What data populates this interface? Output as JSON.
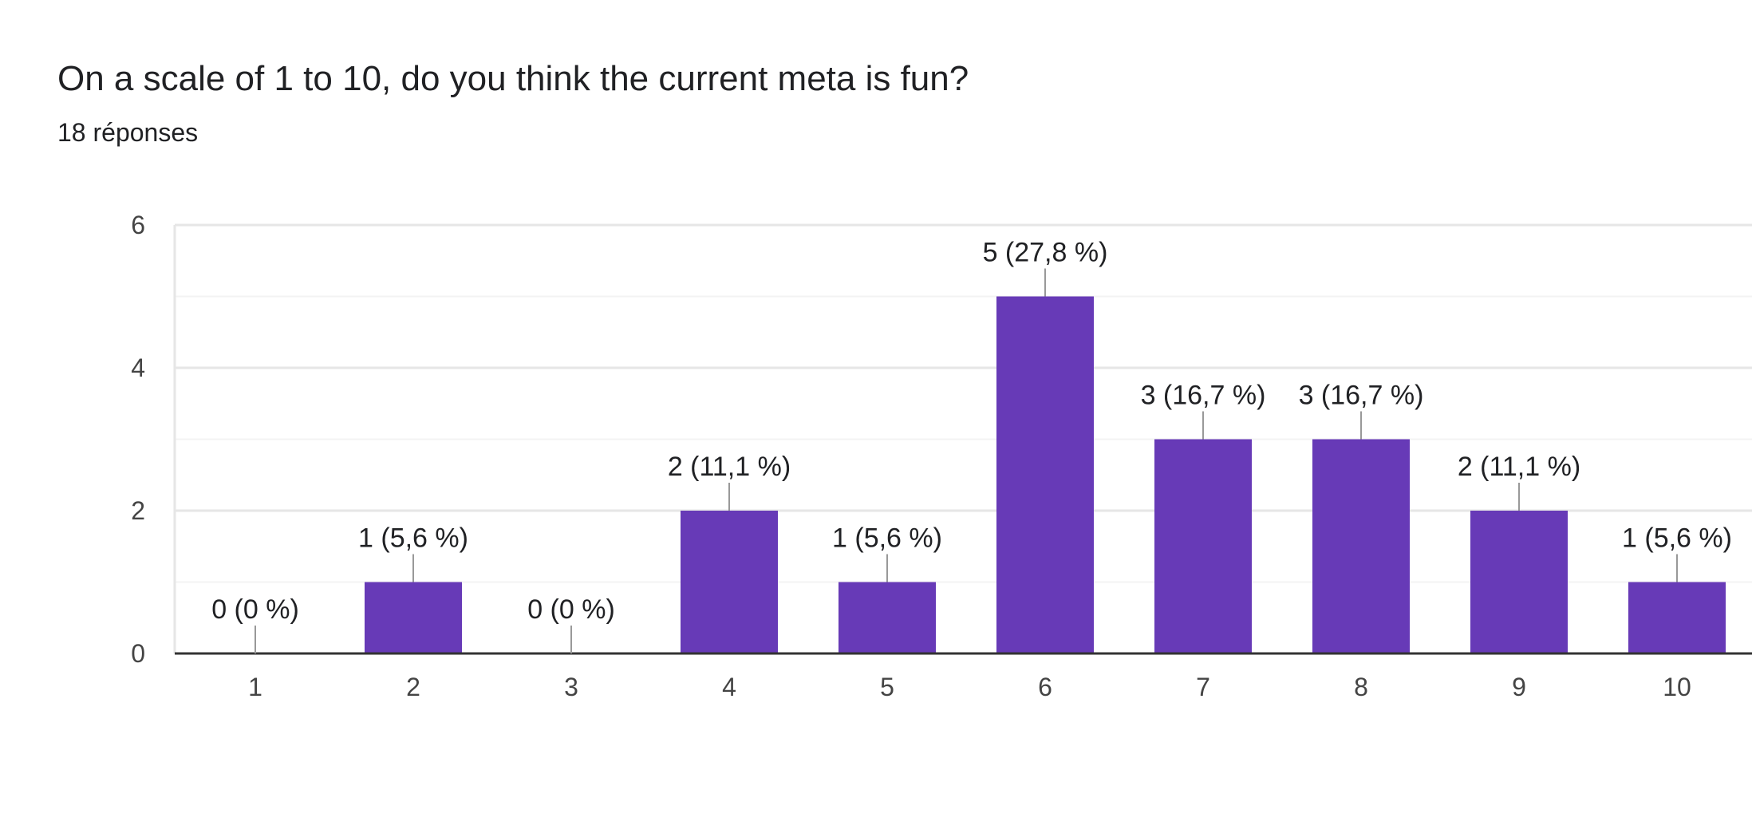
{
  "header": {
    "title": "On a scale of 1 to 10, do you think the current meta is fun?",
    "responses": "18 réponses"
  },
  "colors": {
    "bar": "#673ab7",
    "grid_major": "#e6e6e6",
    "grid_minor": "#f3f3f3",
    "axis": "#333333",
    "leader": "#999999"
  },
  "chart_data": {
    "type": "bar",
    "title": "",
    "xlabel": "",
    "ylabel": "",
    "categories": [
      "1",
      "2",
      "3",
      "4",
      "5",
      "6",
      "7",
      "8",
      "9",
      "10"
    ],
    "values": [
      0,
      1,
      0,
      2,
      1,
      5,
      3,
      3,
      2,
      1
    ],
    "labels": [
      "0 (0 %)",
      "1 (5,6 %)",
      "0 (0 %)",
      "2 (11,1 %)",
      "1 (5,6 %)",
      "5 (27,8 %)",
      "3 (16,7 %)",
      "3 (16,7 %)",
      "2 (11,1 %)",
      "1 (5,6 %)"
    ],
    "ylim": [
      0,
      6
    ],
    "yticks": [
      "0",
      "2",
      "4",
      "6"
    ],
    "grid": true,
    "legend": "none"
  }
}
